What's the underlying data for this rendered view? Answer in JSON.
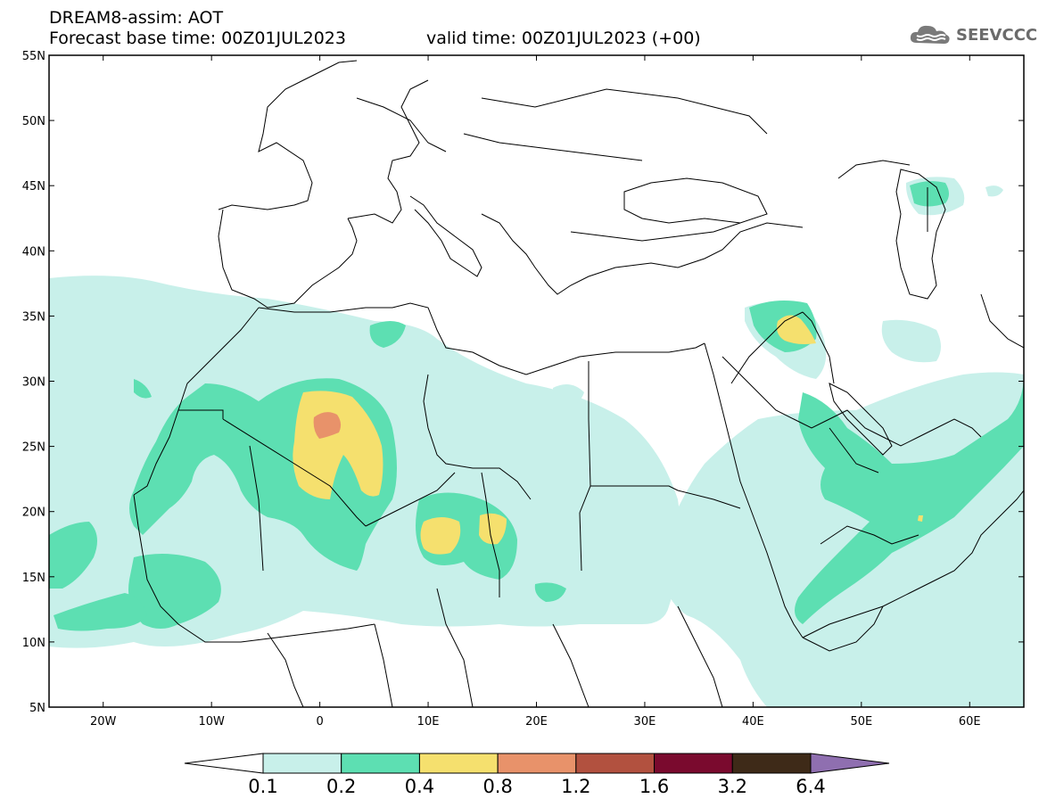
{
  "header": {
    "title": "DREAM8-assim: AOT",
    "base_time": "Forecast base time: 00Z01JUL2023",
    "valid_time": "valid time: 00Z01JUL2023 (+00)"
  },
  "logo": {
    "text": "SEEVCCC",
    "icon": "cloud-icon"
  },
  "map": {
    "region": "North Africa, Mediterranean and Middle East",
    "lon_range": [
      -25,
      65
    ],
    "lat_range": [
      5,
      55
    ],
    "y_ticks": [
      "55N",
      "50N",
      "45N",
      "40N",
      "35N",
      "30N",
      "25N",
      "20N",
      "15N",
      "10N",
      "5N"
    ],
    "x_ticks": [
      "20W",
      "10W",
      "0",
      "10E",
      "20E",
      "30E",
      "40E",
      "50E",
      "60E"
    ]
  },
  "colorbar": {
    "labels": [
      "0.1",
      "0.2",
      "0.4",
      "0.8",
      "1.2",
      "1.6",
      "3.2",
      "6.4"
    ],
    "colors": [
      "#ffffff",
      "#c8f0ea",
      "#5ddfb2",
      "#f5e06e",
      "#e8926a",
      "#b2513f",
      "#7a0a2e",
      "#3e2a18",
      "#8f6fb0"
    ]
  },
  "colors": {
    "level_01": "#c8f0ea",
    "level_02": "#5ddfb2",
    "level_04": "#f5e06e",
    "level_08": "#e8926a",
    "border": "#000000"
  }
}
